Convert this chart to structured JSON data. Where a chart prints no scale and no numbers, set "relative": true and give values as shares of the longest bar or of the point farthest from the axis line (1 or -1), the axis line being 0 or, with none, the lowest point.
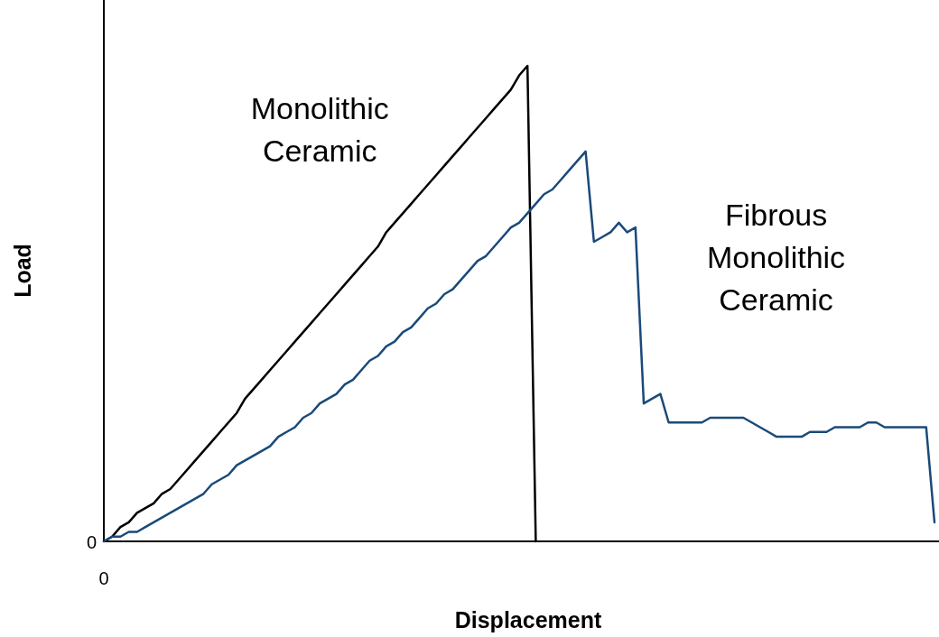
{
  "chart_data": {
    "type": "line",
    "xlabel": "Displacement",
    "ylabel": "Load",
    "relative": true,
    "annotations": [
      "0",
      "0"
    ],
    "marker": "none",
    "line_style": "solid",
    "categories": [
      null,
      null,
      null,
      null,
      null,
      null,
      null,
      null,
      null,
      null,
      null,
      null,
      null,
      null,
      null,
      null,
      null,
      null,
      null,
      null,
      null,
      null,
      null,
      null,
      null,
      null,
      null,
      null,
      null,
      null,
      null,
      null,
      null,
      null,
      null,
      null,
      null,
      null,
      null,
      null,
      null,
      null,
      null,
      null,
      null,
      null,
      null,
      null,
      null,
      null,
      null,
      null,
      null,
      null,
      null,
      null,
      null,
      null,
      null,
      null,
      null,
      null,
      null,
      null,
      null,
      null,
      null,
      null,
      null,
      null,
      null,
      null,
      null,
      null,
      null,
      null,
      null,
      null,
      null,
      null,
      null,
      null,
      null,
      null,
      null,
      null,
      null,
      null,
      null,
      null,
      null,
      null,
      null,
      null,
      null,
      null,
      null,
      null,
      null,
      null,
      null
    ],
    "series": [
      {
        "name": "Monolithic\nCeramic",
        "color": "#000000",
        "values": [
          0,
          0.01,
          0.03,
          0.04,
          0.06,
          0.07,
          0.08,
          0.1,
          0.11,
          0.13,
          0.15,
          0.17,
          0.19,
          0.21,
          0.23,
          0.25,
          0.27,
          0.3,
          0.32,
          0.34,
          0.36,
          0.38,
          0.4,
          0.42,
          0.44,
          0.46,
          0.48,
          0.5,
          0.52,
          0.54,
          0.56,
          0.58,
          0.6,
          0.62,
          0.65,
          0.67,
          0.69,
          0.71,
          0.73,
          0.75,
          0.77,
          0.79,
          0.81,
          0.83,
          0.85,
          0.87,
          0.89,
          0.91,
          0.93,
          0.95,
          0.98,
          1.0,
          0,
          null,
          null,
          null,
          null,
          null,
          null,
          null,
          null,
          null,
          null,
          null,
          null,
          null,
          null,
          null,
          null,
          null,
          null,
          null,
          null,
          null,
          null,
          null,
          null,
          null,
          null,
          null,
          null,
          null,
          null,
          null,
          null,
          null,
          null,
          null,
          null,
          null,
          null,
          null,
          null,
          null,
          null,
          null,
          null,
          null,
          null,
          null,
          null
        ]
      },
      {
        "name": "Fibrous\nMonolithic\nCeramic",
        "color": "#1a4a7a",
        "values": [
          0,
          0.01,
          0.01,
          0.02,
          0.02,
          0.03,
          0.04,
          0.05,
          0.06,
          0.07,
          0.08,
          0.09,
          0.1,
          0.12,
          0.13,
          0.14,
          0.16,
          0.17,
          0.18,
          0.19,
          0.2,
          0.22,
          0.23,
          0.24,
          0.26,
          0.27,
          0.29,
          0.3,
          0.31,
          0.33,
          0.34,
          0.36,
          0.38,
          0.39,
          0.41,
          0.42,
          0.44,
          0.45,
          0.47,
          0.49,
          0.5,
          0.52,
          0.53,
          0.55,
          0.57,
          0.59,
          0.6,
          0.62,
          0.64,
          0.66,
          0.67,
          0.69,
          0.71,
          0.73,
          0.74,
          0.76,
          0.78,
          0.8,
          0.82,
          0.63,
          0.64,
          0.65,
          0.67,
          0.65,
          0.66,
          0.29,
          0.3,
          0.31,
          0.25,
          0.25,
          0.25,
          0.25,
          0.25,
          0.26,
          0.26,
          0.26,
          0.26,
          0.26,
          0.25,
          0.24,
          0.23,
          0.22,
          0.22,
          0.22,
          0.22,
          0.23,
          0.23,
          0.23,
          0.24,
          0.24,
          0.24,
          0.24,
          0.25,
          0.25,
          0.24,
          0.24,
          0.24,
          0.24,
          0.24,
          0.24,
          0.04
        ]
      }
    ]
  }
}
